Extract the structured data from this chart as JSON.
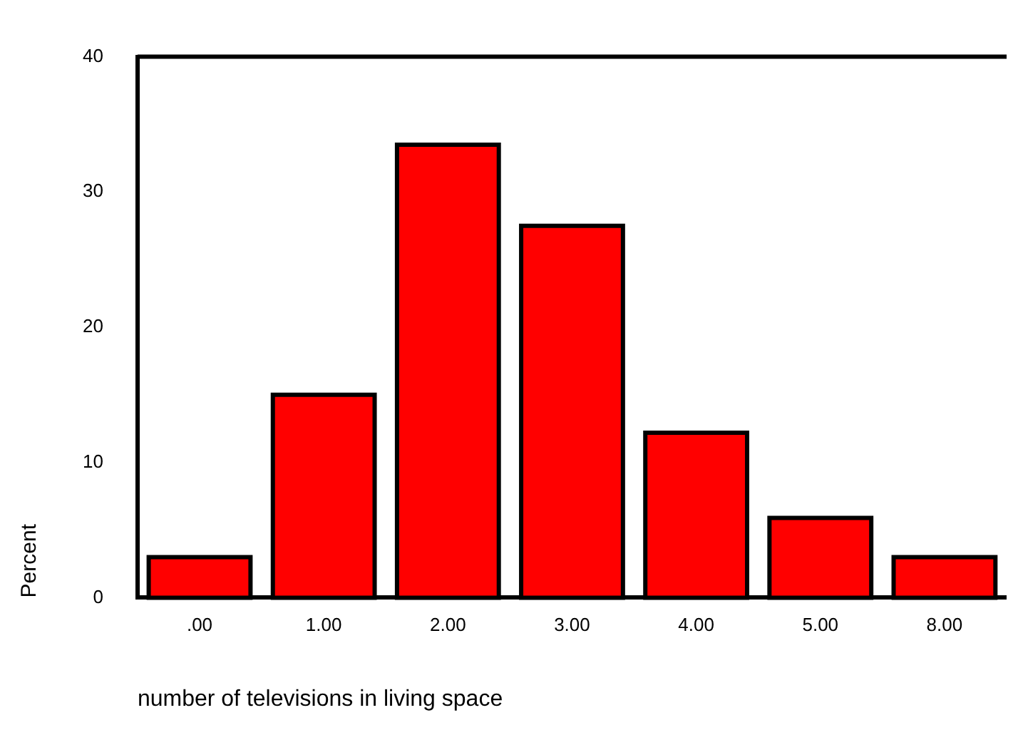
{
  "chart_data": {
    "type": "bar",
    "xlabel": "number of televisions in living space",
    "ylabel": "Percent",
    "categories": [
      ".00",
      "1.00",
      "2.00",
      "3.00",
      "4.00",
      "5.00",
      "8.00"
    ],
    "values": [
      3,
      15,
      33.5,
      27.5,
      12.2,
      5.9,
      3
    ],
    "color": "#ff0000",
    "ylim": [
      0,
      40
    ],
    "yticks": [
      0,
      10,
      20,
      30,
      40
    ],
    "grid": false,
    "legend": false
  }
}
